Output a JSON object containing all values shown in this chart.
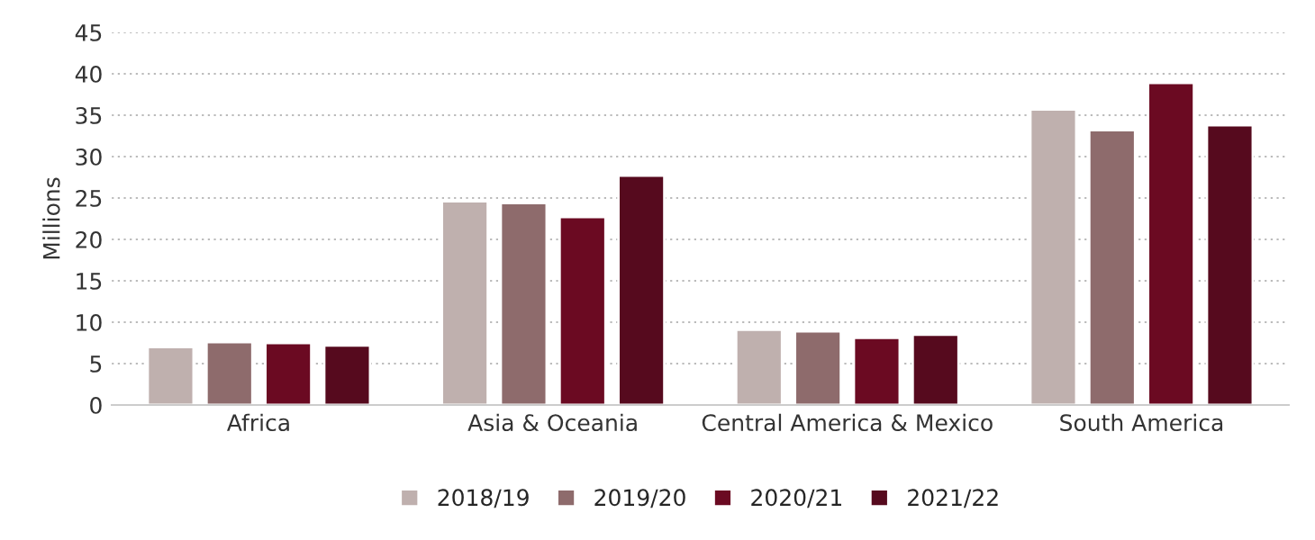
{
  "chart_data": {
    "type": "bar",
    "ylabel": "Millions",
    "categories": [
      "Africa",
      "Asia & Oceania",
      "Central America & Mexico",
      "South America"
    ],
    "series": [
      {
        "name": "2018/19",
        "color": "#bfb0ae",
        "values": [
          7.0,
          24.6,
          9.1,
          35.7
        ]
      },
      {
        "name": "2019/20",
        "color": "#8e6b6c",
        "values": [
          7.6,
          24.4,
          8.9,
          33.2
        ]
      },
      {
        "name": "2020/21",
        "color": "#6b0a22",
        "values": [
          7.5,
          22.7,
          8.1,
          38.9
        ]
      },
      {
        "name": "2021/22",
        "color": "#560a1e",
        "values": [
          7.2,
          27.7,
          8.5,
          33.8
        ]
      }
    ],
    "ylim": [
      0,
      45
    ],
    "yticks": [
      0,
      5,
      10,
      15,
      20,
      25,
      30,
      35,
      40,
      45
    ],
    "grid": "y",
    "legend": "bottom"
  }
}
